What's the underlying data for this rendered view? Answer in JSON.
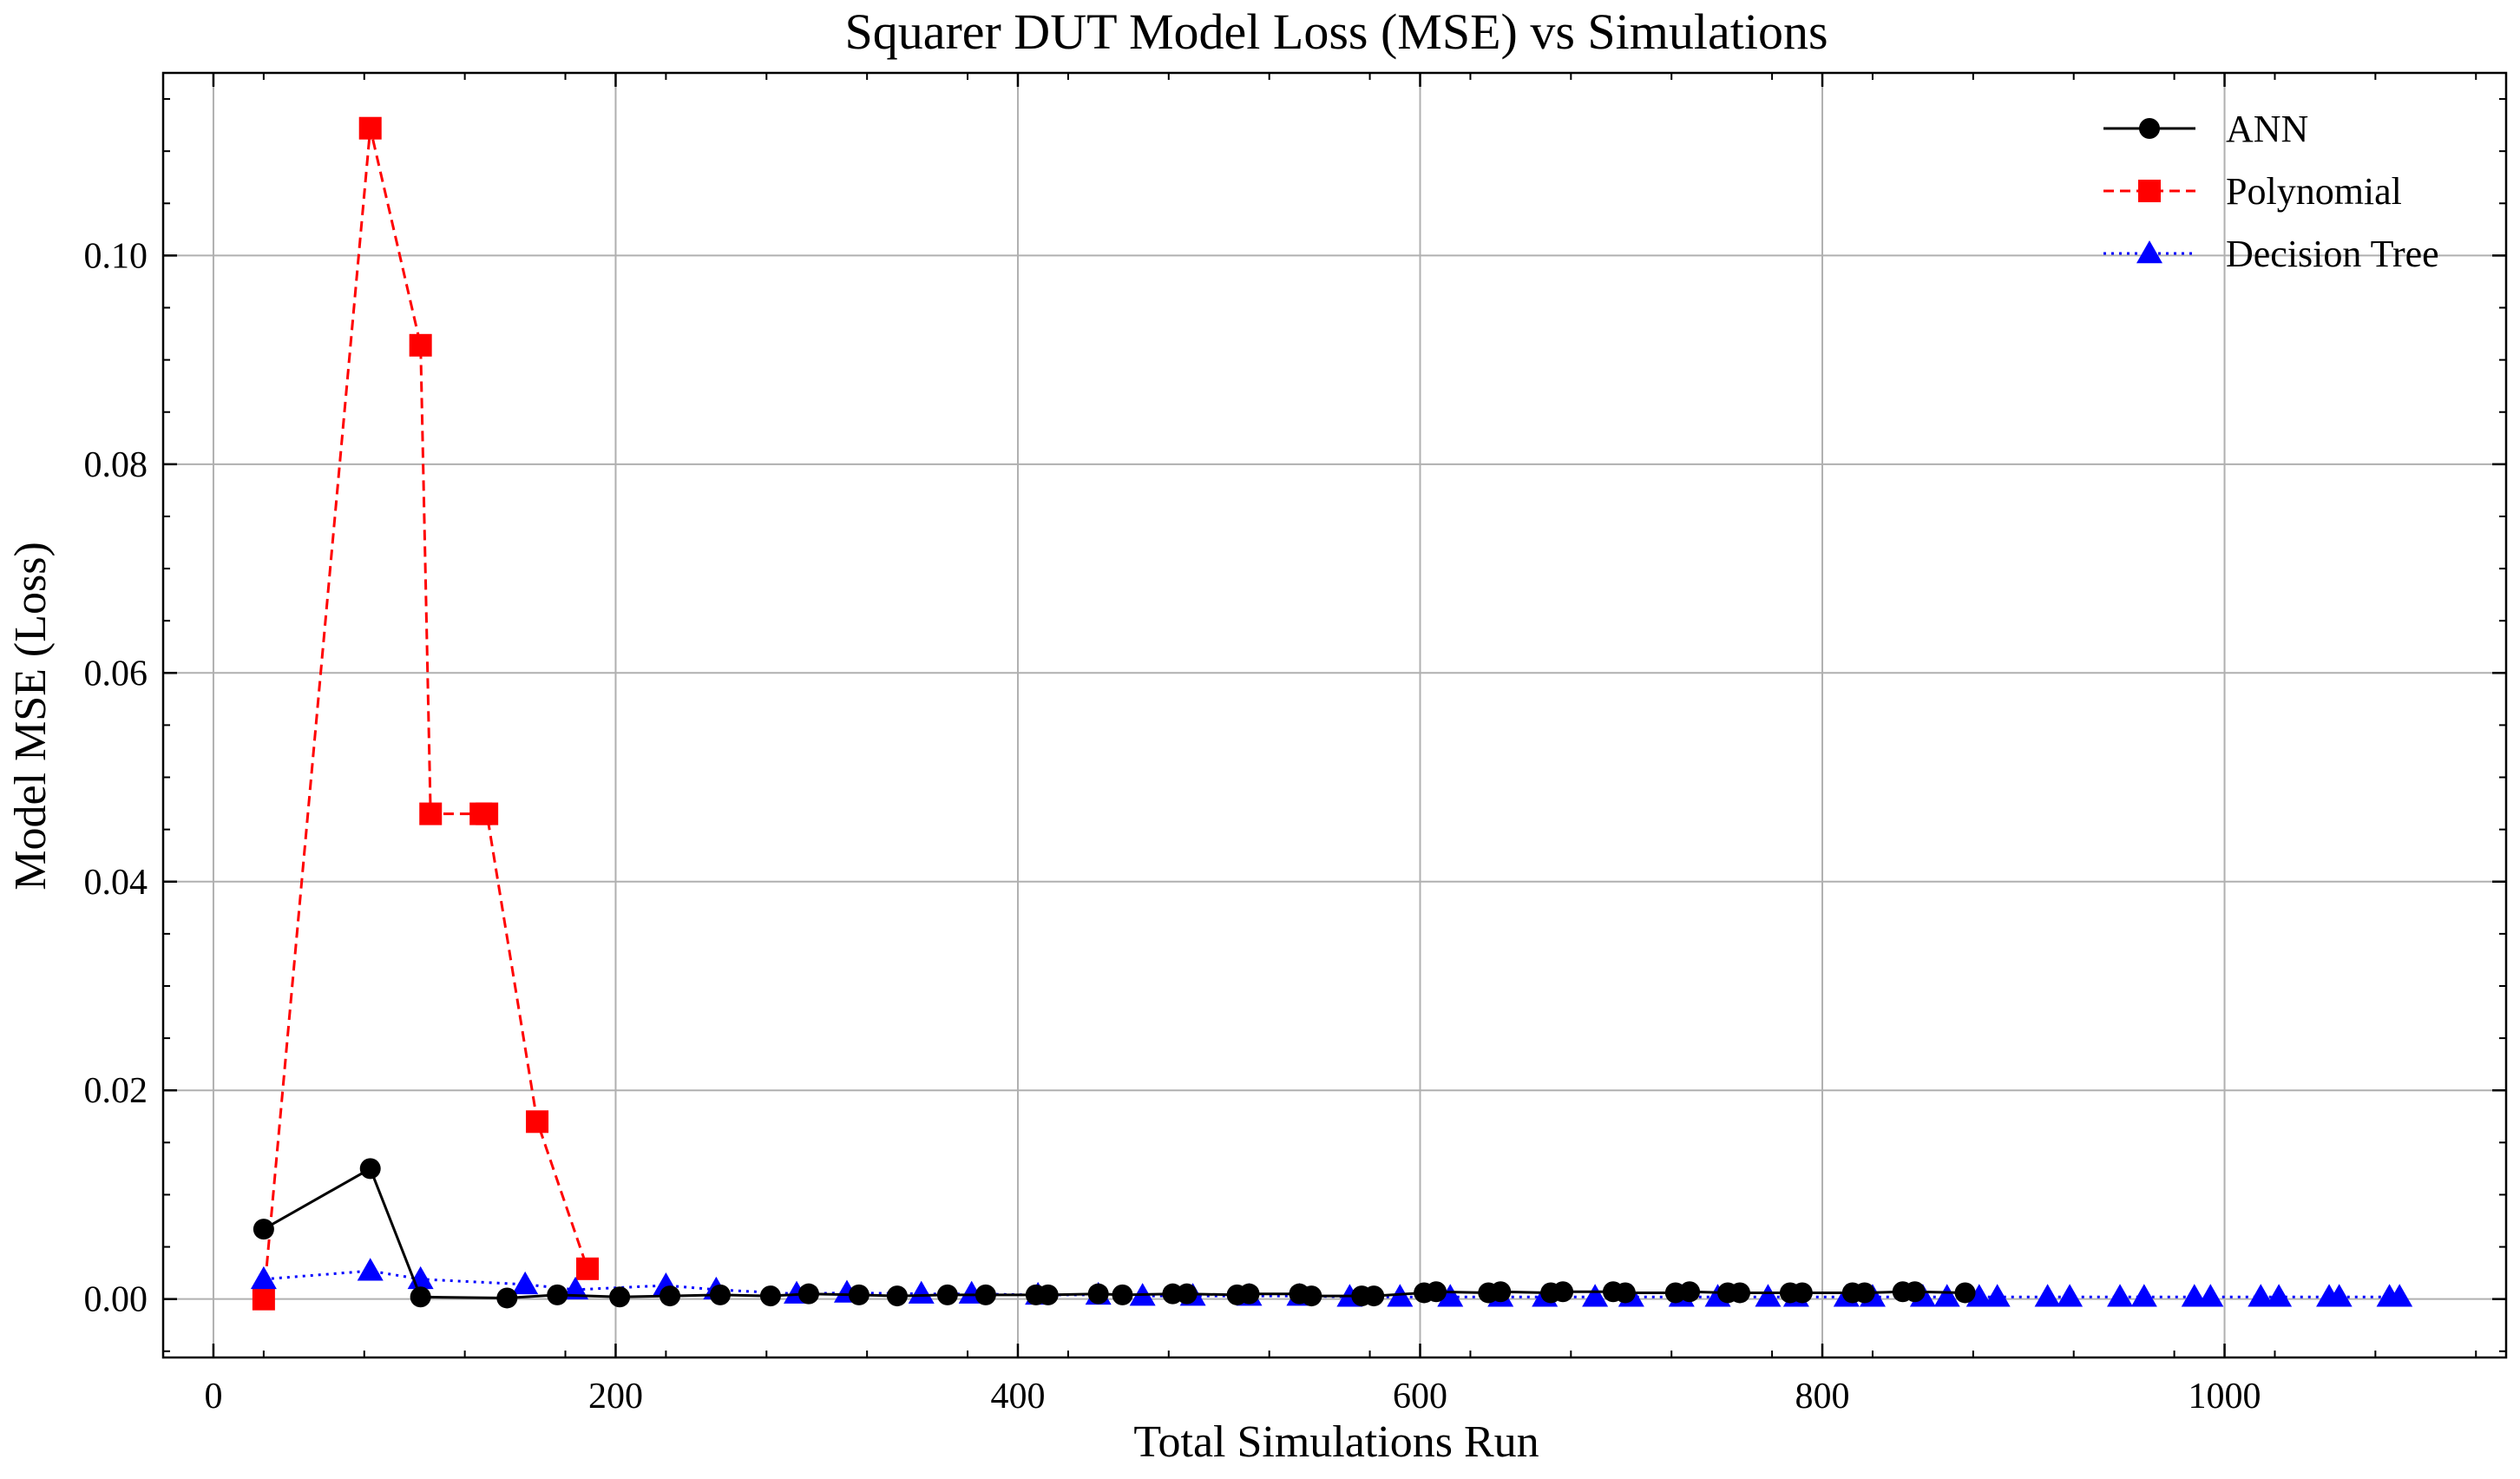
{
  "chart_data": {
    "type": "line",
    "title": "Squarer DUT Model Loss (MSE) vs Simulations",
    "xlabel": "Total Simulations Run",
    "ylabel": "Model MSE (Loss)",
    "xlim": [
      -25,
      1140
    ],
    "ylim": [
      -0.0056,
      0.1175
    ],
    "xticks": [
      0,
      200,
      400,
      600,
      800,
      1000
    ],
    "xtick_labels": [
      "0",
      "200",
      "400",
      "600",
      "800",
      "1000"
    ],
    "yticks": [
      0.0,
      0.02,
      0.04,
      0.06,
      0.08,
      0.1
    ],
    "ytick_labels": [
      "0.00",
      "0.02",
      "0.04",
      "0.06",
      "0.08",
      "0.10"
    ],
    "grid": true,
    "legend_position": "top-right",
    "series": [
      {
        "name": "ANN",
        "color": "#000000",
        "line_style": "solid",
        "marker": "circle",
        "x": [
          25,
          78,
          103,
          146,
          171,
          202,
          227,
          252,
          277,
          296,
          321,
          340,
          365,
          384,
          409,
          415,
          440,
          452,
          477,
          484,
          509,
          515,
          540,
          546,
          571,
          577,
          602,
          608,
          634,
          640,
          665,
          671,
          696,
          702,
          727,
          734,
          753,
          759,
          784,
          790,
          815,
          821,
          840,
          846,
          871
        ],
        "y": [
          0.0067,
          0.0125,
          0.0002,
          0.0001,
          0.0004,
          0.0002,
          0.0003,
          0.0004,
          0.0003,
          0.0005,
          0.0004,
          0.0003,
          0.0004,
          0.0004,
          0.0004,
          0.0004,
          0.0005,
          0.0004,
          0.0005,
          0.0005,
          0.0004,
          0.0005,
          0.0005,
          0.0003,
          0.0003,
          0.0003,
          0.0006,
          0.0007,
          0.0006,
          0.0007,
          0.0006,
          0.0007,
          0.0007,
          0.0006,
          0.0006,
          0.0007,
          0.0006,
          0.0006,
          0.0006,
          0.0006,
          0.0006,
          0.0006,
          0.0007,
          0.0007,
          0.0006
        ]
      },
      {
        "name": "Polynomial",
        "color": "#ff0000",
        "line_style": "dashed",
        "marker": "square",
        "x": [
          25,
          78,
          103,
          108,
          133,
          136,
          161,
          186
        ],
        "y": [
          0.0,
          0.1122,
          0.0914,
          0.0465,
          0.0465,
          0.0465,
          0.017,
          0.0029
        ]
      },
      {
        "name": "Decision Tree",
        "color": "#0000ff",
        "line_style": "dotted",
        "marker": "triangle",
        "x": [
          25,
          78,
          103,
          155,
          180,
          225,
          250,
          290,
          315,
          352,
          377,
          410,
          440,
          462,
          487,
          515,
          540,
          565,
          590,
          615,
          640,
          662,
          687,
          705,
          730,
          748,
          773,
          787,
          812,
          825,
          850,
          862,
          878,
          887,
          912,
          923,
          948,
          960,
          985,
          993,
          1018,
          1027,
          1052,
          1057,
          1082,
          1087
        ],
        "y": [
          0.0019,
          0.0027,
          0.0019,
          0.0014,
          0.0009,
          0.0013,
          0.0009,
          0.0005,
          0.0006,
          0.0005,
          0.0005,
          0.0004,
          0.0004,
          0.0003,
          0.0003,
          0.0003,
          0.0003,
          0.0002,
          0.0002,
          0.0002,
          0.0002,
          0.0002,
          0.0002,
          0.0002,
          0.0002,
          0.0002,
          0.0002,
          0.0002,
          0.0002,
          0.0002,
          0.0002,
          0.0002,
          0.0002,
          0.0002,
          0.0002,
          0.0002,
          0.0002,
          0.0002,
          0.0002,
          0.0002,
          0.0002,
          0.0002,
          0.0002,
          0.0002,
          0.0002,
          0.0002
        ]
      }
    ]
  }
}
